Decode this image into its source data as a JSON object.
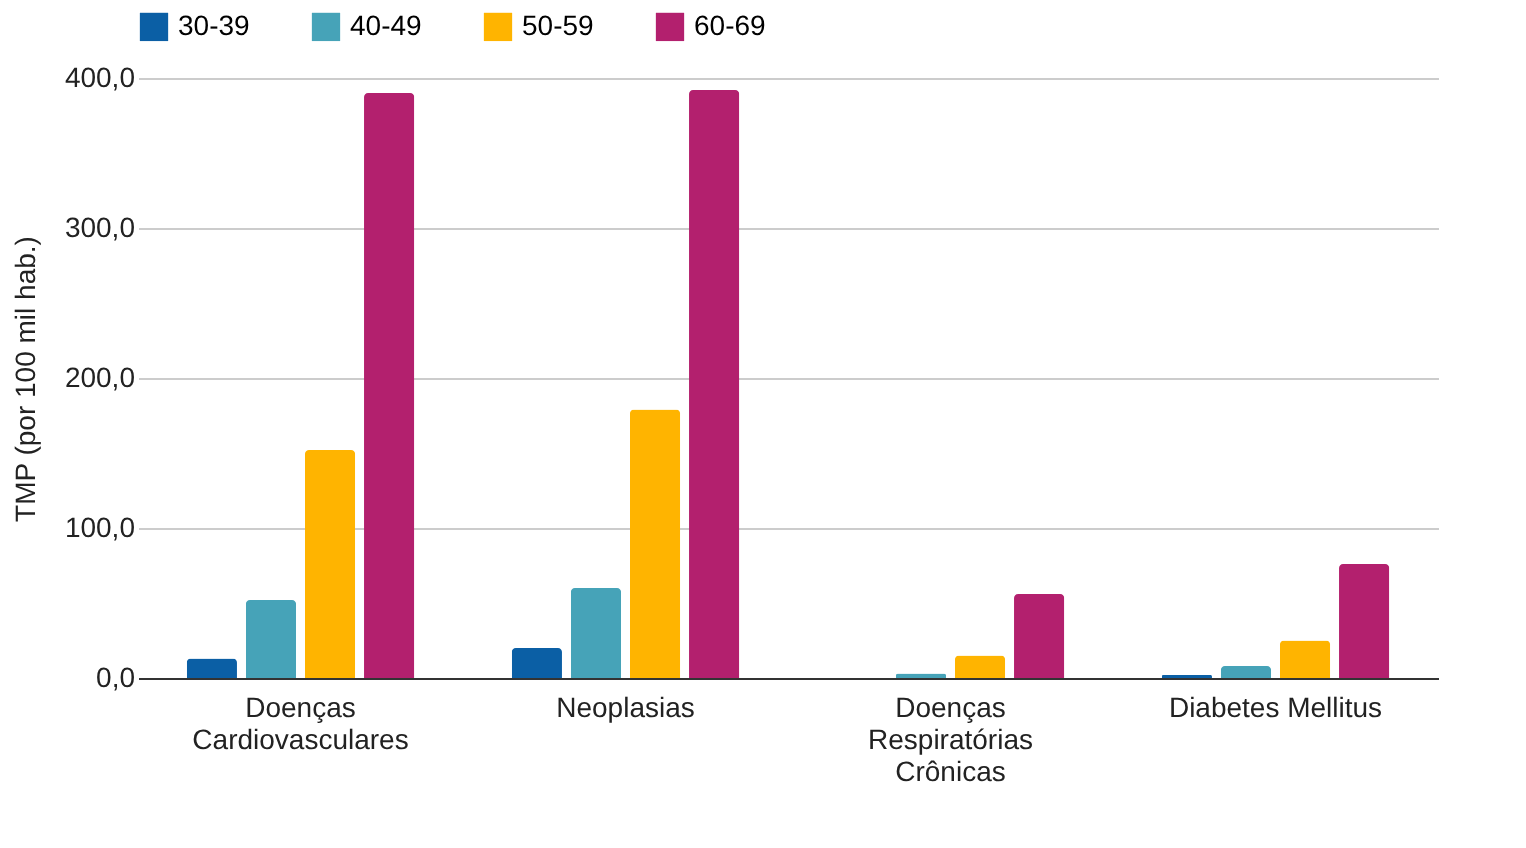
{
  "chart_data": {
    "type": "bar",
    "ylabel": "TMP (por 100 mil hab.)",
    "categories": [
      "Doenças Cardiovasculares",
      "Neoplasias",
      "Doenças Respiratórias Crônicas",
      "Diabetes Mellitus"
    ],
    "series": [
      {
        "name": "30-39",
        "color": "#0b5fa5",
        "values": [
          13,
          20,
          null,
          2
        ]
      },
      {
        "name": "40-49",
        "color": "#46a3b8",
        "values": [
          52,
          60,
          3,
          8
        ]
      },
      {
        "name": "50-59",
        "color": "#ffb400",
        "values": [
          152,
          179,
          15,
          25
        ]
      },
      {
        "name": "60-69",
        "color": "#b3206e",
        "values": [
          390,
          392,
          56,
          76
        ]
      }
    ],
    "ylim": [
      0,
      400
    ],
    "yticks": [
      {
        "value": 0,
        "label": "0,0"
      },
      {
        "value": 100,
        "label": "100,0"
      },
      {
        "value": 200,
        "label": "200,0"
      },
      {
        "value": 300,
        "label": "300,0"
      },
      {
        "value": 400,
        "label": "400,0"
      }
    ],
    "grid": "y",
    "legend": "top"
  }
}
